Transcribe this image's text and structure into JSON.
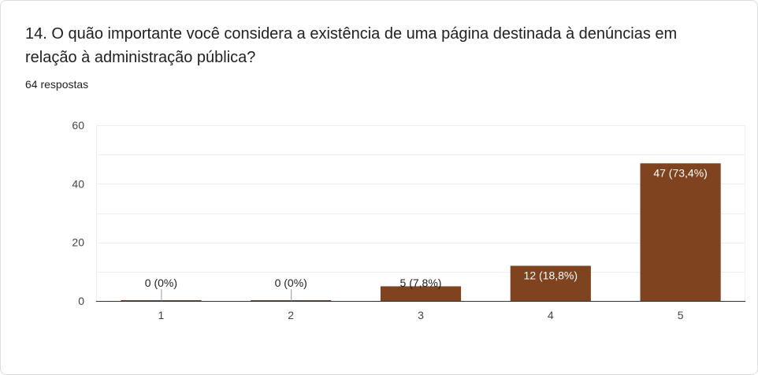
{
  "question": {
    "title": "14. O quão importante você considera a existência de uma página destinada à denúncias em relação à administração pública?",
    "responses": "64 respostas"
  },
  "colors": {
    "bar": "#7f4320",
    "bar_label_inside": "#ffffff",
    "bar_label_outside": "#202124",
    "grid": "#eeeeee",
    "axis": "#333333"
  },
  "chart_data": {
    "type": "bar",
    "categories": [
      "1",
      "2",
      "3",
      "4",
      "5"
    ],
    "values": [
      0,
      0,
      5,
      12,
      47
    ],
    "data_labels": [
      "0 (0%)",
      "0 (0%)",
      "5 (7,8%)",
      "12 (18,8%)",
      "47 (73,4%)"
    ],
    "title": "",
    "xlabel": "",
    "ylabel": "",
    "ylim": [
      0,
      60
    ],
    "yticks": [
      0,
      20,
      40,
      60
    ],
    "grid": true,
    "legend": "none"
  }
}
